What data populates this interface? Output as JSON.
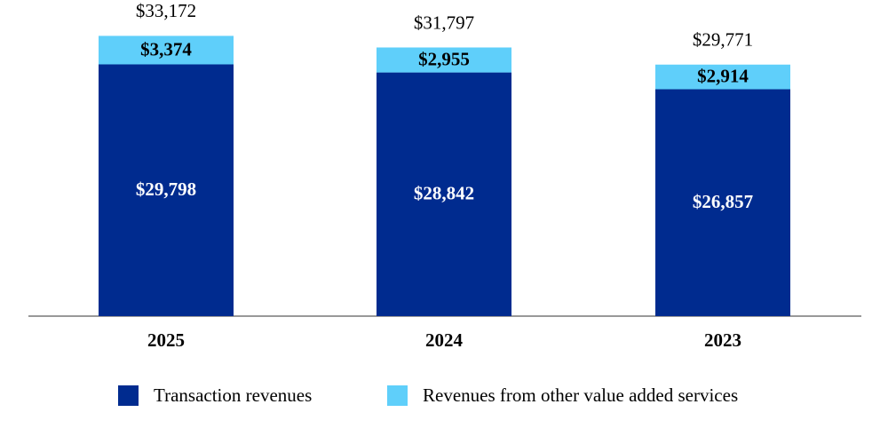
{
  "chart_data": {
    "type": "stacked_bar",
    "categories": [
      "2025",
      "2024",
      "2023"
    ],
    "series": [
      {
        "name": "Transaction revenues",
        "color": "#002b8f",
        "values": [
          29798,
          28842,
          26857
        ],
        "value_labels": [
          "$29,798",
          "$28,842",
          "$26,857"
        ]
      },
      {
        "name": "Revenues from other value added services",
        "color": "#5fcffa",
        "values": [
          3374,
          2955,
          2914
        ],
        "value_labels": [
          "$3,374",
          "$2,955",
          "$2,914"
        ]
      }
    ],
    "totals": {
      "values": [
        33172,
        31797,
        29771
      ],
      "value_labels": [
        "$33,172",
        "$31,797",
        "$29,771"
      ]
    },
    "ylim": [
      0,
      35000
    ]
  }
}
